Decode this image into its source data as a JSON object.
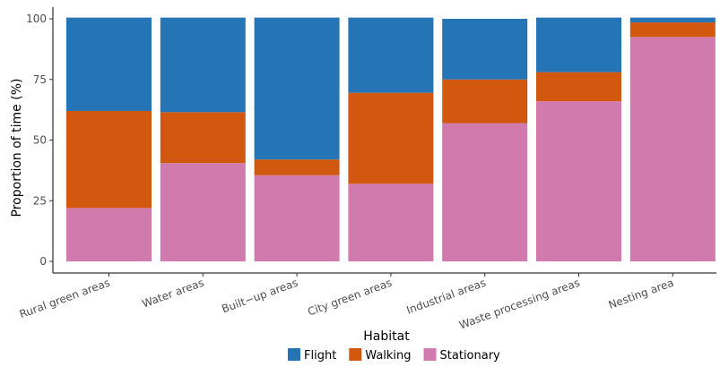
{
  "chart_data": {
    "type": "bar",
    "stacked": true,
    "title": "",
    "xlabel": "Habitat",
    "ylabel": "Proportion of time (%)",
    "ylim": [
      0,
      100
    ],
    "yticks": [
      0,
      25,
      50,
      75,
      100
    ],
    "grid": false,
    "legend_position": "bottom",
    "categories": [
      "Rural green areas",
      "Water areas",
      "Built−up areas",
      "City green areas",
      "Industrial areas",
      "Waste processing areas",
      "Nesting area"
    ],
    "series": [
      {
        "name": "Stationary",
        "color": "#d17aad",
        "values": [
          22,
          40.5,
          35.5,
          32,
          57,
          66,
          92.5
        ]
      },
      {
        "name": "Walking",
        "color": "#d2580f",
        "values": [
          40,
          21,
          6.5,
          37.5,
          18,
          12,
          6
        ]
      },
      {
        "name": "Flight",
        "color": "#2574b5",
        "values": [
          38.5,
          39,
          58.5,
          31,
          25,
          22.5,
          2
        ]
      }
    ],
    "legend_order": [
      "Flight",
      "Walking",
      "Stationary"
    ]
  }
}
